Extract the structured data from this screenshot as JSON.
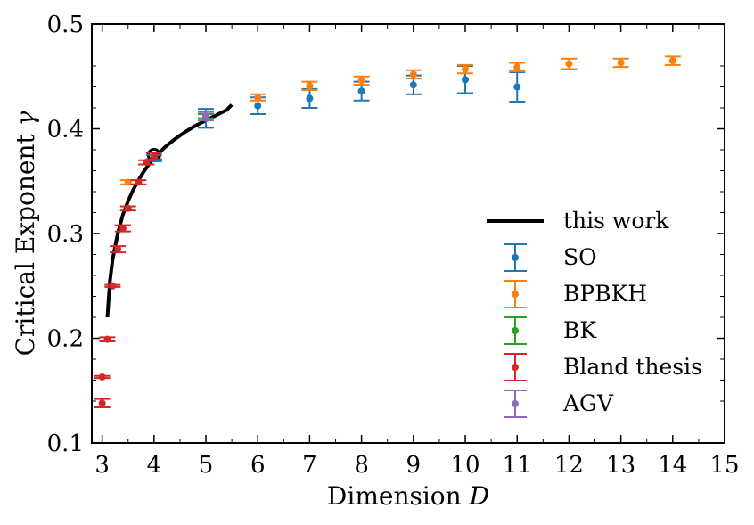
{
  "chart_data": {
    "type": "scatter",
    "xlabel": "Dimension",
    "xlabel_symbol": "D",
    "ylabel": "Critical Exponent",
    "ylabel_symbol": "γ",
    "xlim": [
      2.8,
      15
    ],
    "ylim": [
      0.1,
      0.5
    ],
    "xticks": [
      3,
      4,
      5,
      6,
      7,
      8,
      9,
      10,
      11,
      12,
      13,
      14,
      15
    ],
    "yticks": [
      0.1,
      0.2,
      0.3,
      0.4,
      0.5
    ],
    "ytick_labels": [
      "0.1",
      "0.2",
      "0.3",
      "0.4",
      "0.5"
    ],
    "legend_position": "center-right",
    "curve": {
      "name": "this work",
      "color": "#000000",
      "x": [
        3.1,
        3.15,
        3.2,
        3.3,
        3.4,
        3.5,
        3.6,
        3.7,
        3.8,
        3.9,
        4.0,
        4.2,
        4.4,
        4.6,
        4.8,
        5.0,
        5.2,
        5.4,
        5.5
      ],
      "y": [
        0.22,
        0.255,
        0.275,
        0.3,
        0.318,
        0.331,
        0.342,
        0.351,
        0.359,
        0.366,
        0.372,
        0.382,
        0.39,
        0.397,
        0.403,
        0.408,
        0.413,
        0.418,
        0.423
      ],
      "marker": {
        "x": 4.0,
        "y": 0.375
      }
    },
    "series": [
      {
        "name": "SO",
        "color": "#1f77b4",
        "points": [
          {
            "x": 4,
            "y": 0.372,
            "err": 0.003
          },
          {
            "x": 5,
            "y": 0.41,
            "err": 0.009
          },
          {
            "x": 6,
            "y": 0.422,
            "err": 0.008
          },
          {
            "x": 7,
            "y": 0.429,
            "err": 0.009
          },
          {
            "x": 8,
            "y": 0.436,
            "err": 0.009
          },
          {
            "x": 9,
            "y": 0.442,
            "err": 0.009
          },
          {
            "x": 10,
            "y": 0.447,
            "err": 0.013
          },
          {
            "x": 11,
            "y": 0.44,
            "err": 0.014
          }
        ]
      },
      {
        "name": "BPBKH",
        "color": "#ff7f0e",
        "points": [
          {
            "x": 3.5,
            "y": 0.349,
            "err": 0.002
          },
          {
            "x": 6,
            "y": 0.43,
            "err": 0.003
          },
          {
            "x": 7,
            "y": 0.441,
            "err": 0.004
          },
          {
            "x": 8,
            "y": 0.446,
            "err": 0.004
          },
          {
            "x": 9,
            "y": 0.452,
            "err": 0.004
          },
          {
            "x": 10,
            "y": 0.457,
            "err": 0.004
          },
          {
            "x": 11,
            "y": 0.459,
            "err": 0.004
          },
          {
            "x": 12,
            "y": 0.462,
            "err": 0.005
          },
          {
            "x": 13,
            "y": 0.463,
            "err": 0.004
          },
          {
            "x": 14,
            "y": 0.465,
            "err": 0.004
          }
        ]
      },
      {
        "name": "BK",
        "color": "#2ca02c",
        "points": [
          {
            "x": 5,
            "y": 0.412,
            "err": 0.002
          }
        ]
      },
      {
        "name": "Bland thesis",
        "color": "#d62728",
        "points": [
          {
            "x": 3.0,
            "y": 0.138,
            "err": 0.004
          },
          {
            "x": 3.0,
            "y": 0.163,
            "err": 0.001
          },
          {
            "x": 3.1,
            "y": 0.199,
            "err": 0.002
          },
          {
            "x": 3.2,
            "y": 0.25,
            "err": 0.001
          },
          {
            "x": 3.3,
            "y": 0.285,
            "err": 0.003
          },
          {
            "x": 3.4,
            "y": 0.305,
            "err": 0.003
          },
          {
            "x": 3.5,
            "y": 0.324,
            "err": 0.002
          },
          {
            "x": 3.7,
            "y": 0.349,
            "err": 0.002
          },
          {
            "x": 3.85,
            "y": 0.368,
            "err": 0.002
          },
          {
            "x": 4.0,
            "y": 0.374,
            "err": 0.003
          }
        ]
      },
      {
        "name": "AGV",
        "color": "#9467bd",
        "points": [
          {
            "x": 5,
            "y": 0.412,
            "err": 0.004
          }
        ]
      }
    ]
  }
}
